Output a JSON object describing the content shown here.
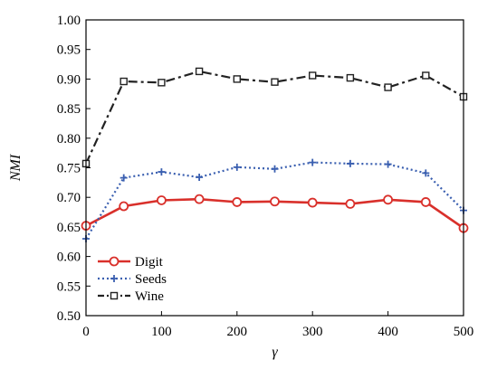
{
  "chart_data": {
    "type": "line",
    "xlabel": "γ",
    "ylabel": "NMI",
    "xlim": [
      0,
      500
    ],
    "ylim": [
      0.5,
      1.0
    ],
    "x": [
      0,
      50,
      100,
      150,
      200,
      250,
      300,
      350,
      400,
      450,
      500
    ],
    "x_ticks": [
      "0",
      "100",
      "200",
      "300",
      "400",
      "500"
    ],
    "y_ticks": [
      "0.50",
      "0.55",
      "0.60",
      "0.65",
      "0.70",
      "0.75",
      "0.80",
      "0.85",
      "0.90",
      "0.95",
      "1.00"
    ],
    "grid": false,
    "legend_position": "bottom-left",
    "series": [
      {
        "name": "Digit",
        "color": "#d9302b",
        "line_style": "solid",
        "marker": "circle",
        "values": [
          0.652,
          0.685,
          0.695,
          0.697,
          0.692,
          0.693,
          0.691,
          0.689,
          0.696,
          0.692,
          0.648
        ]
      },
      {
        "name": "Seeds",
        "color": "#3a5fb0",
        "line_style": "dotted",
        "marker": "plus",
        "values": [
          0.63,
          0.733,
          0.743,
          0.734,
          0.751,
          0.748,
          0.759,
          0.757,
          0.756,
          0.741,
          0.678
        ]
      },
      {
        "name": "Wine",
        "color": "#222222",
        "line_style": "dashdot",
        "marker": "square",
        "values": [
          0.757,
          0.896,
          0.894,
          0.913,
          0.9,
          0.895,
          0.906,
          0.902,
          0.886,
          0.906,
          0.87
        ]
      }
    ]
  }
}
